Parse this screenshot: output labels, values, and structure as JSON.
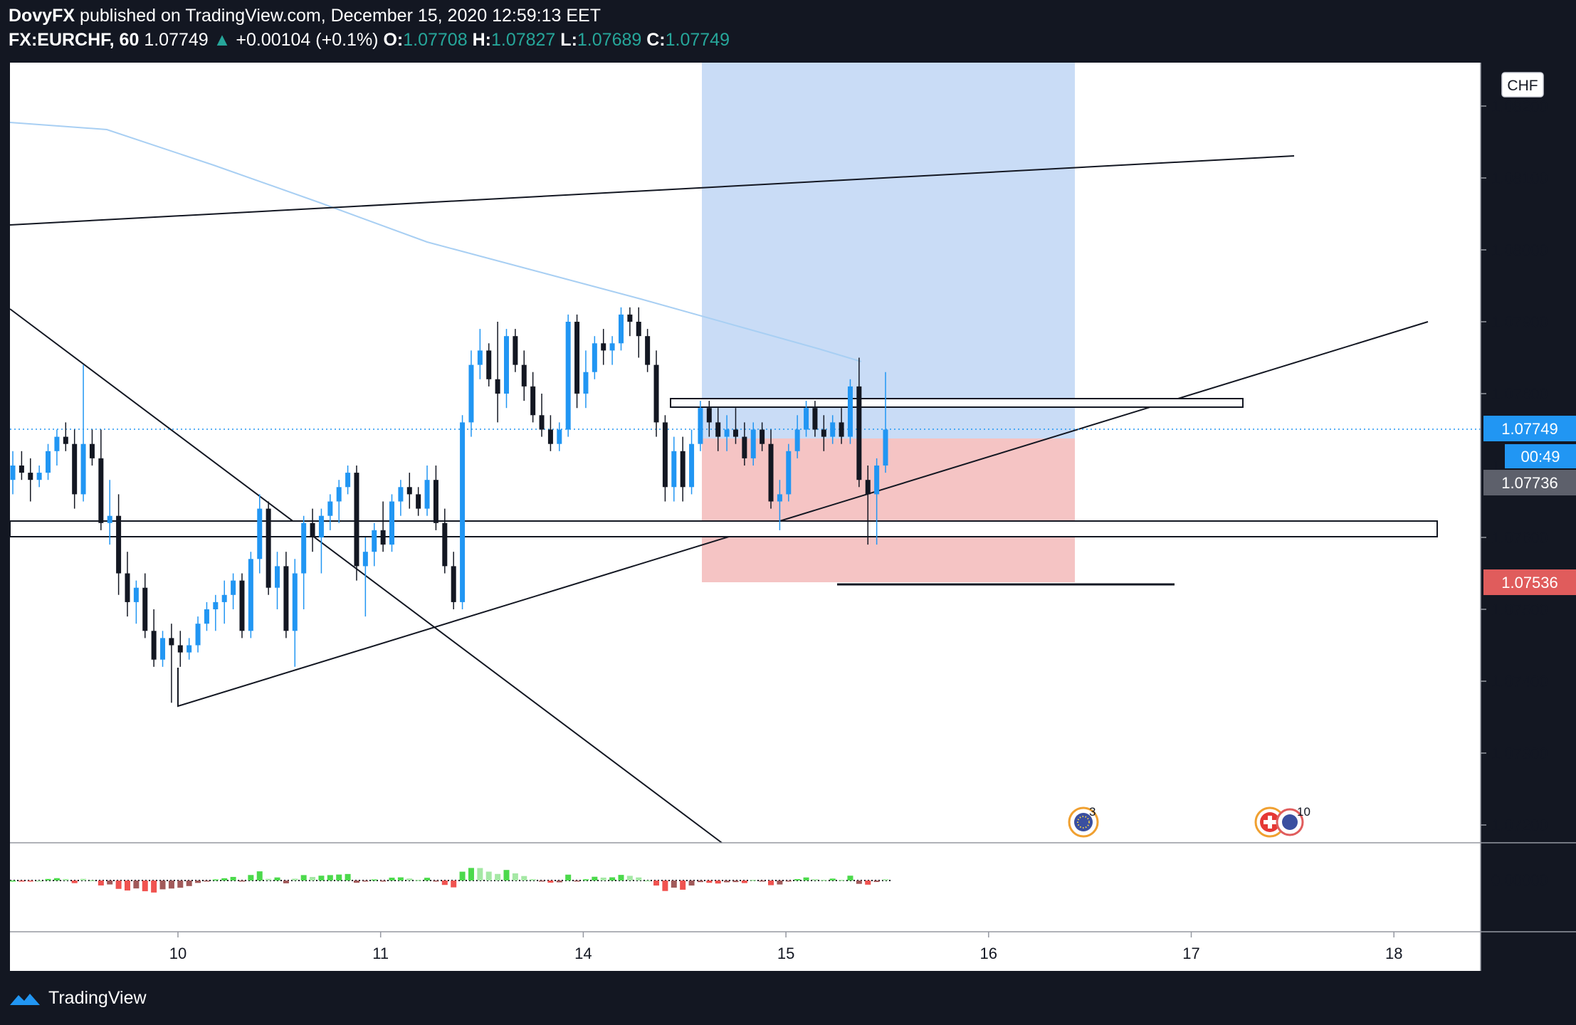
{
  "header": {
    "author": "DovyFX",
    "published_text": "published on TradingView.com, December 15, 2020 12:59:13 EET",
    "symbol": "FX:EURCHF, 60",
    "last": "1.07749",
    "change": "+0.00104 (+0.1%)",
    "open_label": "O:",
    "open": "1.07708",
    "high_label": "H:",
    "high": "1.07827",
    "low_label": "L:",
    "low": "1.07689",
    "close_label": "C:",
    "close": "1.07749"
  },
  "footer": {
    "brand": "TradingView"
  },
  "colors": {
    "up": "#2196f3",
    "down": "#131722",
    "ma": "#a8cff3",
    "target_zone": "#c9dcf6",
    "stop_zone": "#f5c4c4",
    "hist_pos_strong": "#4cd94c",
    "hist_pos_weak": "#a5e8a5",
    "hist_neg_strong": "#f05350",
    "hist_neg_weak": "#a15a5a",
    "last_price": "#2196f3",
    "stop_price": "#e05c5c",
    "entry_price": "#5d606b"
  },
  "chart_data": {
    "type": "candlestick",
    "currency": "CHF",
    "y_ticks": [
      "1.08200",
      "1.08100",
      "1.08000",
      "1.07900",
      "1.07800",
      "1.07600",
      "1.07500",
      "1.07400",
      "1.07300",
      "1.07200"
    ],
    "x_ticks": [
      "10",
      "11",
      "14",
      "15",
      "16",
      "17",
      "18"
    ],
    "price_labels": {
      "last": "1.07749",
      "countdown": "00:49",
      "entry": "1.07736",
      "stop": "1.07536",
      "covered": "1"
    },
    "osc_tick": "0.00000",
    "events": [
      "3",
      "10"
    ],
    "candles": [
      [
        1.0768,
        1.0772,
        1.0766,
        1.077
      ],
      [
        1.077,
        1.0772,
        1.0768,
        1.0769
      ],
      [
        1.0769,
        1.0771,
        1.0765,
        1.0768
      ],
      [
        1.0768,
        1.077,
        1.0767,
        1.0769
      ],
      [
        1.0769,
        1.0773,
        1.0768,
        1.0772
      ],
      [
        1.0772,
        1.0775,
        1.077,
        1.0774
      ],
      [
        1.0774,
        1.0776,
        1.0772,
        1.0773
      ],
      [
        1.0773,
        1.0775,
        1.0764,
        1.0766
      ],
      [
        1.0766,
        1.0784,
        1.0765,
        1.0773
      ],
      [
        1.0773,
        1.0775,
        1.077,
        1.0771
      ],
      [
        1.0771,
        1.0775,
        1.0761,
        1.0762
      ],
      [
        1.0762,
        1.0768,
        1.0759,
        1.0763
      ],
      [
        1.0763,
        1.0766,
        1.0752,
        1.0755
      ],
      [
        1.0755,
        1.0758,
        1.0749,
        1.0751
      ],
      [
        1.0751,
        1.0754,
        1.0748,
        1.0753
      ],
      [
        1.0753,
        1.0755,
        1.0746,
        1.0747
      ],
      [
        1.0747,
        1.075,
        1.0742,
        1.0743
      ],
      [
        1.0743,
        1.0747,
        1.0742,
        1.0746
      ],
      [
        1.0746,
        1.0748,
        1.0737,
        1.0745
      ],
      [
        1.0745,
        1.0747,
        1.0742,
        1.0744
      ],
      [
        1.0744,
        1.0746,
        1.0743,
        1.0745
      ],
      [
        1.0745,
        1.0749,
        1.0744,
        1.0748
      ],
      [
        1.0748,
        1.0751,
        1.0747,
        1.075
      ],
      [
        1.075,
        1.0752,
        1.0747,
        1.0751
      ],
      [
        1.0751,
        1.0754,
        1.0748,
        1.0752
      ],
      [
        1.0752,
        1.0755,
        1.075,
        1.0754
      ],
      [
        1.0754,
        1.0755,
        1.0746,
        1.0747
      ],
      [
        1.0747,
        1.0758,
        1.0746,
        1.0757
      ],
      [
        1.0757,
        1.0766,
        1.0755,
        1.0764
      ],
      [
        1.0764,
        1.0765,
        1.0752,
        1.0753
      ],
      [
        1.0753,
        1.0758,
        1.075,
        1.0756
      ],
      [
        1.0756,
        1.0758,
        1.0746,
        1.0747
      ],
      [
        1.0747,
        1.0757,
        1.0742,
        1.0755
      ],
      [
        1.0755,
        1.0763,
        1.075,
        1.0762
      ],
      [
        1.0762,
        1.0764,
        1.0758,
        1.076
      ],
      [
        1.076,
        1.0764,
        1.0755,
        1.0763
      ],
      [
        1.0763,
        1.0766,
        1.0761,
        1.0765
      ],
      [
        1.0765,
        1.0768,
        1.0762,
        1.0767
      ],
      [
        1.0767,
        1.077,
        1.0766,
        1.0769
      ],
      [
        1.0769,
        1.077,
        1.0754,
        1.0756
      ],
      [
        1.0756,
        1.076,
        1.0749,
        1.0758
      ],
      [
        1.0758,
        1.0762,
        1.0756,
        1.0761
      ],
      [
        1.0761,
        1.0765,
        1.0758,
        1.0759
      ],
      [
        1.0759,
        1.0766,
        1.0758,
        1.0765
      ],
      [
        1.0765,
        1.0768,
        1.0763,
        1.0767
      ],
      [
        1.0767,
        1.0769,
        1.0764,
        1.0766
      ],
      [
        1.0766,
        1.0767,
        1.0763,
        1.0764
      ],
      [
        1.0764,
        1.077,
        1.0763,
        1.0768
      ],
      [
        1.0768,
        1.077,
        1.0761,
        1.0762
      ],
      [
        1.0762,
        1.0764,
        1.0755,
        1.0756
      ],
      [
        1.0756,
        1.0758,
        1.075,
        1.0751
      ],
      [
        1.0751,
        1.0777,
        1.075,
        1.0776
      ],
      [
        1.0776,
        1.0786,
        1.0774,
        1.0784
      ],
      [
        1.0784,
        1.0789,
        1.0782,
        1.0786
      ],
      [
        1.0786,
        1.0787,
        1.0781,
        1.0782
      ],
      [
        1.0782,
        1.079,
        1.0776,
        1.078
      ],
      [
        1.078,
        1.0789,
        1.0778,
        1.0788
      ],
      [
        1.0788,
        1.0789,
        1.0783,
        1.0784
      ],
      [
        1.0784,
        1.0786,
        1.0779,
        1.0781
      ],
      [
        1.0781,
        1.0783,
        1.0776,
        1.0777
      ],
      [
        1.0777,
        1.078,
        1.0774,
        1.0775
      ],
      [
        1.0775,
        1.0777,
        1.0772,
        1.0773
      ],
      [
        1.0773,
        1.0776,
        1.0772,
        1.0775
      ],
      [
        1.0775,
        1.0791,
        1.0774,
        1.079
      ],
      [
        1.079,
        1.0791,
        1.0778,
        1.078
      ],
      [
        1.078,
        1.0786,
        1.0778,
        1.0783
      ],
      [
        1.0783,
        1.0788,
        1.0782,
        1.0787
      ],
      [
        1.0787,
        1.0789,
        1.0784,
        1.0786
      ],
      [
        1.0786,
        1.0788,
        1.0784,
        1.0787
      ],
      [
        1.0787,
        1.0792,
        1.0786,
        1.0791
      ],
      [
        1.0791,
        1.0792,
        1.0788,
        1.079
      ],
      [
        1.079,
        1.0792,
        1.0785,
        1.0788
      ],
      [
        1.0788,
        1.0789,
        1.0783,
        1.0784
      ],
      [
        1.0784,
        1.0786,
        1.0774,
        1.0776
      ],
      [
        1.0776,
        1.0777,
        1.0765,
        1.0767
      ],
      [
        1.0767,
        1.0774,
        1.0765,
        1.0772
      ],
      [
        1.0772,
        1.0774,
        1.0765,
        1.0767
      ],
      [
        1.0767,
        1.0775,
        1.0766,
        1.0773
      ],
      [
        1.0773,
        1.0779,
        1.0772,
        1.0778
      ],
      [
        1.0778,
        1.0779,
        1.0774,
        1.0776
      ],
      [
        1.0776,
        1.0778,
        1.0772,
        1.0774
      ],
      [
        1.0774,
        1.0777,
        1.0772,
        1.0775
      ],
      [
        1.0775,
        1.0778,
        1.0773,
        1.0774
      ],
      [
        1.0774,
        1.0776,
        1.077,
        1.0771
      ],
      [
        1.0771,
        1.0776,
        1.077,
        1.0775
      ],
      [
        1.0775,
        1.0776,
        1.0772,
        1.0773
      ],
      [
        1.0773,
        1.0775,
        1.0764,
        1.0765
      ],
      [
        1.0765,
        1.0768,
        1.0761,
        1.0766
      ],
      [
        1.0766,
        1.0773,
        1.0765,
        1.0772
      ],
      [
        1.0772,
        1.0777,
        1.0771,
        1.0775
      ],
      [
        1.0775,
        1.0779,
        1.0774,
        1.0778
      ],
      [
        1.0778,
        1.0779,
        1.0774,
        1.0775
      ],
      [
        1.0775,
        1.0777,
        1.0772,
        1.0774
      ],
      [
        1.0774,
        1.0777,
        1.0773,
        1.0776
      ],
      [
        1.0776,
        1.0778,
        1.0773,
        1.0774
      ],
      [
        1.0774,
        1.0782,
        1.0773,
        1.0781
      ],
      [
        1.0781,
        1.0785,
        1.0767,
        1.0768
      ],
      [
        1.0768,
        1.077,
        1.0759,
        1.0766
      ],
      [
        1.0766,
        1.0771,
        1.0759,
        1.077
      ],
      [
        1.077,
        1.0783,
        1.0769,
        1.0775
      ]
    ]
  }
}
